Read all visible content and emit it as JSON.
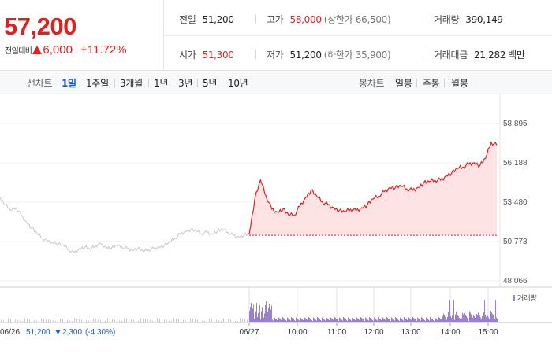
{
  "quote": {
    "price": "57,200",
    "change_label": "전일대비",
    "change_amount": "6,000",
    "change_percent": "+11.72%"
  },
  "stats": {
    "prev_close": {
      "label": "전일",
      "value": "51,200"
    },
    "open": {
      "label": "시가",
      "value": "51,300"
    },
    "high": {
      "label": "고가",
      "value": "58,000",
      "note": "(상한가 66,500)"
    },
    "low": {
      "label": "저가",
      "value": "51,200",
      "note": "(하한가 35,900)"
    },
    "volume": {
      "label": "거래량",
      "value": "390,149"
    },
    "turnover": {
      "label": "거래대금",
      "value": "21,282",
      "unit": "백만"
    }
  },
  "toolbar": {
    "line_chart_label": "선차트",
    "periods": [
      "1일",
      "1주일",
      "3개월",
      "1년",
      "3년",
      "5년",
      "10년"
    ],
    "selected_period": "1일",
    "candle_label": "봉차트",
    "candle_periods": [
      "일봉",
      "주봉",
      "월봉"
    ]
  },
  "colors": {
    "up": "#e02020",
    "down": "#1a5bc9",
    "prev_line": "#c8c8c8",
    "volume": "#9b7fd1",
    "area_fill": "#fde3e3"
  },
  "footer": {
    "prev_date": "06/26",
    "prev_close": "51,200",
    "prev_change": "2,300",
    "prev_change_percent": "(-4.30%)",
    "volume_legend": "거래량"
  },
  "chart_data": {
    "type": "line",
    "y_ticks": [
      "58,895",
      "56,188",
      "53,480",
      "50,773",
      "48,066"
    ],
    "ylim": [
      48066,
      58895
    ],
    "x_ticks": [
      "06/27",
      "10:00",
      "11:00",
      "12:00",
      "13:00",
      "14:00",
      "15:00"
    ],
    "reference_line": 51200,
    "series": [
      {
        "values": [
          53800,
          53300,
          52900,
          53100,
          52600,
          52100,
          51700,
          51300,
          51000,
          50800,
          50700,
          50600,
          50500,
          50200,
          50000,
          50300,
          50400,
          50200,
          50500,
          50600,
          50400,
          50300,
          50500,
          50400,
          50300,
          50200,
          50300,
          50100,
          50200,
          50300,
          50400,
          50500,
          50700,
          51000,
          51300,
          51500,
          51600,
          51500,
          51300,
          51400,
          51300,
          51500,
          51600,
          51400,
          51200,
          51100,
          51200,
          51300
        ]
      },
      {
        "values": [
          51300,
          53700,
          55000,
          53900,
          53000,
          52800,
          53000,
          52600,
          52600,
          53200,
          53800,
          54300,
          53900,
          53500,
          53300,
          53100,
          52900,
          52800,
          53000,
          52900,
          53100,
          53300,
          53700,
          53900,
          54200,
          54500,
          54500,
          54600,
          54400,
          54300,
          54500,
          54800,
          54900,
          55000,
          55000,
          55300,
          55500,
          55800,
          55900,
          56100,
          56200,
          56000,
          56500,
          57600,
          57400
        ]
      }
    ]
  }
}
